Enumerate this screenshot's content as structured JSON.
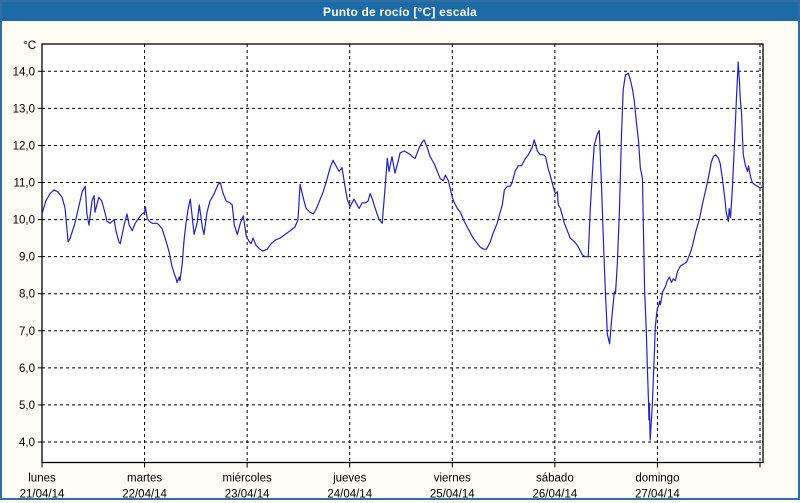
{
  "window": {
    "title": "Punto de rocío [°C] escala"
  },
  "colors": {
    "titlebar_bg": "#1c6aa6",
    "titlebar_text": "#ffffff",
    "frame_border": "#2f6ea6",
    "page_bg": "#fdfdf6",
    "plot_bg": "#ffffff",
    "axis": "#000000",
    "grid": "#000000",
    "label_text": "#000000",
    "line": "#2121cc"
  },
  "chart_data": {
    "type": "line",
    "title": "Punto de rocío [°C] escala",
    "ylabel": "°C",
    "ylim": [
      3.4,
      14.8
    ],
    "grid": "dashed-both-axes",
    "legend": "none",
    "y_ticks": [
      {
        "value": 14,
        "label": "14,0"
      },
      {
        "value": 13,
        "label": "13,0"
      },
      {
        "value": 12,
        "label": "12,0"
      },
      {
        "value": 11,
        "label": "11,0"
      },
      {
        "value": 10,
        "label": "10,0"
      },
      {
        "value": 9,
        "label": "9,0"
      },
      {
        "value": 8,
        "label": "8,0"
      },
      {
        "value": 7,
        "label": "7,0"
      },
      {
        "value": 6,
        "label": "6,0"
      },
      {
        "value": 5,
        "label": "5,0"
      },
      {
        "value": 4,
        "label": "4,0"
      }
    ],
    "x_axis": {
      "unit": "hours",
      "hours_per_day": 24,
      "total_hours": 168.8,
      "days": [
        {
          "name": "lunes",
          "date": "21/04/14"
        },
        {
          "name": "martes",
          "date": "22/04/14"
        },
        {
          "name": "miércoles",
          "date": "23/04/14"
        },
        {
          "name": "jueves",
          "date": "24/04/14"
        },
        {
          "name": "viernes",
          "date": "25/04/14"
        },
        {
          "name": "sábado",
          "date": "26/04/14"
        },
        {
          "name": "domingo",
          "date": "27/04/14"
        }
      ]
    },
    "series": [
      {
        "name": "Punto de rocío [°C]",
        "color": "#2121cc",
        "points": [
          [
            0,
            10.15
          ],
          [
            0.9,
            10.5
          ],
          [
            1.9,
            10.7
          ],
          [
            2.8,
            10.8
          ],
          [
            3.7,
            10.75
          ],
          [
            4.7,
            10.6
          ],
          [
            5.4,
            10.3
          ],
          [
            6.1,
            9.4
          ],
          [
            6.6,
            9.5
          ],
          [
            7.7,
            9.9
          ],
          [
            8.7,
            10.4
          ],
          [
            9.4,
            10.75
          ],
          [
            10.1,
            10.9
          ],
          [
            10.5,
            10.15
          ],
          [
            11.0,
            9.85
          ],
          [
            11.7,
            10.5
          ],
          [
            12.2,
            10.65
          ],
          [
            12.4,
            10.2
          ],
          [
            13.3,
            10.6
          ],
          [
            14.0,
            10.5
          ],
          [
            14.8,
            10.15
          ],
          [
            15.2,
            9.95
          ],
          [
            15.9,
            9.9
          ],
          [
            16.9,
            10.0
          ],
          [
            17.3,
            9.7
          ],
          [
            18.0,
            9.4
          ],
          [
            18.3,
            9.35
          ],
          [
            19.2,
            9.85
          ],
          [
            19.9,
            10.15
          ],
          [
            20.4,
            9.85
          ],
          [
            21.1,
            9.7
          ],
          [
            21.8,
            9.9
          ],
          [
            22.7,
            10.05
          ],
          [
            23.4,
            10.15
          ],
          [
            24.0,
            10.2
          ],
          [
            24.2,
            10.35
          ],
          [
            24.6,
            10.05
          ],
          [
            25.1,
            9.95
          ],
          [
            25.8,
            9.9
          ],
          [
            26.9,
            9.9
          ],
          [
            27.4,
            9.85
          ],
          [
            28.1,
            9.75
          ],
          [
            28.8,
            9.5
          ],
          [
            29.7,
            9.15
          ],
          [
            30.4,
            8.75
          ],
          [
            30.9,
            8.55
          ],
          [
            31.4,
            8.4
          ],
          [
            31.6,
            8.3
          ],
          [
            32.1,
            8.45
          ],
          [
            32.3,
            8.35
          ],
          [
            32.8,
            8.8
          ],
          [
            33.2,
            9.4
          ],
          [
            33.7,
            9.9
          ],
          [
            34.2,
            10.3
          ],
          [
            34.7,
            10.55
          ],
          [
            35.6,
            9.6
          ],
          [
            36.3,
            9.9
          ],
          [
            36.8,
            10.4
          ],
          [
            37.5,
            9.8
          ],
          [
            37.9,
            9.6
          ],
          [
            38.6,
            10.2
          ],
          [
            39.3,
            10.5
          ],
          [
            40.3,
            10.7
          ],
          [
            41.2,
            10.95
          ],
          [
            41.7,
            11.0
          ],
          [
            42.4,
            10.7
          ],
          [
            43.1,
            10.5
          ],
          [
            44.0,
            10.45
          ],
          [
            44.5,
            10.4
          ],
          [
            45.0,
            9.85
          ],
          [
            45.7,
            9.6
          ],
          [
            46.4,
            9.9
          ],
          [
            47.1,
            10.1
          ],
          [
            47.8,
            9.55
          ],
          [
            48.5,
            9.4
          ],
          [
            48.9,
            9.35
          ],
          [
            49.4,
            9.5
          ],
          [
            50.1,
            9.3
          ],
          [
            51.0,
            9.2
          ],
          [
            51.7,
            9.15
          ],
          [
            52.7,
            9.2
          ],
          [
            53.6,
            9.35
          ],
          [
            54.6,
            9.45
          ],
          [
            55.7,
            9.5
          ],
          [
            56.9,
            9.6
          ],
          [
            58.1,
            9.7
          ],
          [
            59.2,
            9.8
          ],
          [
            59.9,
            10.0
          ],
          [
            60.4,
            10.95
          ],
          [
            61.1,
            10.6
          ],
          [
            61.8,
            10.3
          ],
          [
            62.7,
            10.2
          ],
          [
            63.5,
            10.15
          ],
          [
            64.2,
            10.3
          ],
          [
            65.1,
            10.55
          ],
          [
            65.8,
            10.75
          ],
          [
            66.7,
            11.1
          ],
          [
            67.4,
            11.4
          ],
          [
            68.1,
            11.6
          ],
          [
            68.8,
            11.45
          ],
          [
            69.5,
            11.3
          ],
          [
            70.2,
            11.4
          ],
          [
            70.9,
            10.9
          ],
          [
            71.4,
            10.55
          ],
          [
            72.1,
            10.35
          ],
          [
            73.0,
            10.55
          ],
          [
            73.7,
            10.4
          ],
          [
            74.2,
            10.3
          ],
          [
            74.9,
            10.45
          ],
          [
            75.6,
            10.45
          ],
          [
            76.3,
            10.5
          ],
          [
            76.8,
            10.7
          ],
          [
            77.3,
            10.55
          ],
          [
            77.7,
            10.4
          ],
          [
            78.4,
            10.15
          ],
          [
            78.9,
            10.0
          ],
          [
            79.6,
            9.9
          ],
          [
            80.3,
            10.9
          ],
          [
            80.8,
            11.65
          ],
          [
            81.2,
            11.3
          ],
          [
            81.9,
            11.7
          ],
          [
            82.6,
            11.25
          ],
          [
            83.4,
            11.6
          ],
          [
            83.8,
            11.8
          ],
          [
            84.8,
            11.85
          ],
          [
            85.5,
            11.8
          ],
          [
            86.2,
            11.75
          ],
          [
            86.6,
            11.7
          ],
          [
            87.3,
            11.65
          ],
          [
            88.3,
            11.95
          ],
          [
            89.0,
            12.1
          ],
          [
            89.4,
            12.15
          ],
          [
            90.1,
            11.95
          ],
          [
            90.8,
            11.7
          ],
          [
            91.8,
            11.5
          ],
          [
            92.5,
            11.3
          ],
          [
            93.2,
            11.1
          ],
          [
            93.9,
            11.05
          ],
          [
            94.4,
            11.2
          ],
          [
            95.1,
            11.05
          ],
          [
            95.5,
            10.85
          ],
          [
            96.0,
            10.6
          ],
          [
            96.5,
            10.45
          ],
          [
            97.2,
            10.3
          ],
          [
            97.9,
            10.2
          ],
          [
            98.6,
            10.0
          ],
          [
            99.5,
            9.8
          ],
          [
            100.2,
            9.65
          ],
          [
            100.9,
            9.5
          ],
          [
            101.9,
            9.35
          ],
          [
            102.6,
            9.25
          ],
          [
            103.3,
            9.2
          ],
          [
            104.0,
            9.2
          ],
          [
            104.9,
            9.4
          ],
          [
            105.6,
            9.65
          ],
          [
            106.5,
            9.9
          ],
          [
            107.2,
            10.2
          ],
          [
            107.7,
            10.4
          ],
          [
            108.2,
            10.8
          ],
          [
            108.9,
            10.9
          ],
          [
            109.6,
            10.9
          ],
          [
            110.0,
            11.0
          ],
          [
            110.7,
            11.3
          ],
          [
            111.4,
            11.45
          ],
          [
            112.2,
            11.45
          ],
          [
            113.1,
            11.65
          ],
          [
            113.8,
            11.75
          ],
          [
            114.7,
            11.95
          ],
          [
            115.2,
            12.15
          ],
          [
            115.9,
            11.85
          ],
          [
            116.6,
            11.75
          ],
          [
            117.3,
            11.75
          ],
          [
            117.8,
            11.7
          ],
          [
            118.5,
            11.35
          ],
          [
            118.9,
            11.2
          ],
          [
            119.6,
            10.9
          ],
          [
            120.1,
            10.7
          ],
          [
            120.6,
            10.75
          ],
          [
            120.8,
            10.4
          ],
          [
            121.3,
            10.3
          ],
          [
            121.8,
            10.1
          ],
          [
            122.2,
            9.9
          ],
          [
            122.9,
            9.7
          ],
          [
            123.6,
            9.5
          ],
          [
            124.6,
            9.4
          ],
          [
            125.3,
            9.3
          ],
          [
            126.0,
            9.15
          ],
          [
            126.4,
            9.05
          ],
          [
            127.1,
            9.0
          ],
          [
            127.8,
            9.0
          ],
          [
            128.3,
            10.3
          ],
          [
            128.8,
            11.3
          ],
          [
            129.2,
            12.0
          ],
          [
            129.9,
            12.3
          ],
          [
            130.4,
            12.4
          ],
          [
            130.9,
            11.0
          ],
          [
            131.4,
            9.3
          ],
          [
            131.8,
            8.1
          ],
          [
            132.3,
            6.9
          ],
          [
            132.8,
            6.65
          ],
          [
            133.2,
            7.2
          ],
          [
            133.9,
            8.05
          ],
          [
            134.2,
            8.0
          ],
          [
            134.6,
            8.8
          ],
          [
            135.1,
            10.2
          ],
          [
            135.6,
            12.3
          ],
          [
            136.0,
            13.5
          ],
          [
            136.5,
            13.9
          ],
          [
            137.2,
            13.95
          ],
          [
            137.7,
            13.75
          ],
          [
            138.2,
            13.5
          ],
          [
            138.6,
            13.2
          ],
          [
            139.1,
            12.6
          ],
          [
            139.6,
            12.1
          ],
          [
            140.0,
            11.4
          ],
          [
            140.5,
            11.1
          ],
          [
            140.7,
            9.9
          ],
          [
            141.0,
            8.1
          ],
          [
            141.4,
            7.0
          ],
          [
            141.6,
            6.15
          ],
          [
            141.9,
            5.1
          ],
          [
            142.0,
            4.6
          ],
          [
            142.1,
            5.05
          ],
          [
            142.3,
            4.05
          ],
          [
            142.8,
            5.0
          ],
          [
            143.3,
            6.4
          ],
          [
            143.5,
            7.1
          ],
          [
            143.8,
            7.45
          ],
          [
            144.0,
            7.6
          ],
          [
            144.2,
            7.65
          ],
          [
            144.5,
            7.8
          ],
          [
            144.7,
            7.7
          ],
          [
            145.2,
            8.05
          ],
          [
            145.9,
            8.2
          ],
          [
            146.3,
            8.35
          ],
          [
            146.8,
            8.45
          ],
          [
            147.3,
            8.3
          ],
          [
            147.7,
            8.4
          ],
          [
            148.2,
            8.35
          ],
          [
            148.7,
            8.6
          ],
          [
            149.4,
            8.75
          ],
          [
            150.1,
            8.8
          ],
          [
            150.8,
            8.85
          ],
          [
            151.7,
            9.1
          ],
          [
            152.2,
            9.3
          ],
          [
            152.9,
            9.65
          ],
          [
            153.8,
            10.0
          ],
          [
            154.5,
            10.4
          ],
          [
            155.2,
            10.75
          ],
          [
            155.7,
            11.0
          ],
          [
            156.2,
            11.3
          ],
          [
            156.6,
            11.55
          ],
          [
            157.1,
            11.7
          ],
          [
            157.6,
            11.75
          ],
          [
            158.3,
            11.65
          ],
          [
            158.7,
            11.5
          ],
          [
            159.2,
            11.1
          ],
          [
            159.7,
            10.65
          ],
          [
            160.1,
            10.2
          ],
          [
            160.6,
            9.95
          ],
          [
            160.8,
            10.3
          ],
          [
            161.1,
            10.05
          ],
          [
            161.5,
            10.75
          ],
          [
            162.0,
            12.0
          ],
          [
            162.5,
            13.3
          ],
          [
            162.9,
            14.25
          ],
          [
            163.2,
            13.7
          ],
          [
            163.4,
            13.25
          ],
          [
            163.7,
            12.85
          ],
          [
            163.9,
            12.2
          ],
          [
            164.1,
            11.75
          ],
          [
            164.6,
            11.45
          ],
          [
            165.1,
            11.3
          ],
          [
            165.3,
            11.45
          ],
          [
            165.8,
            11.15
          ],
          [
            166.2,
            11.0
          ],
          [
            166.7,
            10.95
          ],
          [
            167.4,
            10.9
          ],
          [
            168.1,
            10.85
          ],
          [
            168.8,
            10.9
          ]
        ]
      }
    ]
  }
}
